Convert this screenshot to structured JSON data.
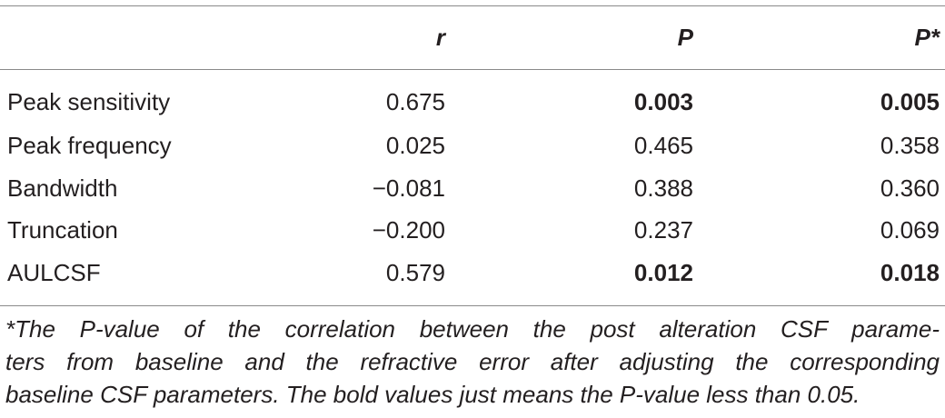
{
  "table": {
    "headers": [
      "",
      "r",
      "P",
      "P*"
    ],
    "rows": [
      {
        "label": "Peak sensitivity",
        "r": "0.675",
        "p": "0.003",
        "p_star": "0.005",
        "p_bold": true,
        "p_star_bold": true
      },
      {
        "label": "Peak frequency",
        "r": "0.025",
        "p": "0.465",
        "p_star": "0.358",
        "p_bold": false,
        "p_star_bold": false
      },
      {
        "label": "Bandwidth",
        "r": "−0.081",
        "p": "0.388",
        "p_star": "0.360",
        "p_bold": false,
        "p_star_bold": false
      },
      {
        "label": "Truncation",
        "r": "−0.200",
        "p": "0.237",
        "p_star": "0.069",
        "p_bold": false,
        "p_star_bold": false
      },
      {
        "label": "AULCSF",
        "r": "0.579",
        "p": "0.012",
        "p_star": "0.018",
        "p_bold": true,
        "p_star_bold": true
      }
    ]
  },
  "footnote": {
    "lines": [
      "*The P-value of the correlation between the post alteration CSF parame-",
      "ters from baseline and the refractive error after adjusting the corresponding",
      "baseline CSF parameters. The bold values just means the P-value less than 0.05."
    ]
  }
}
